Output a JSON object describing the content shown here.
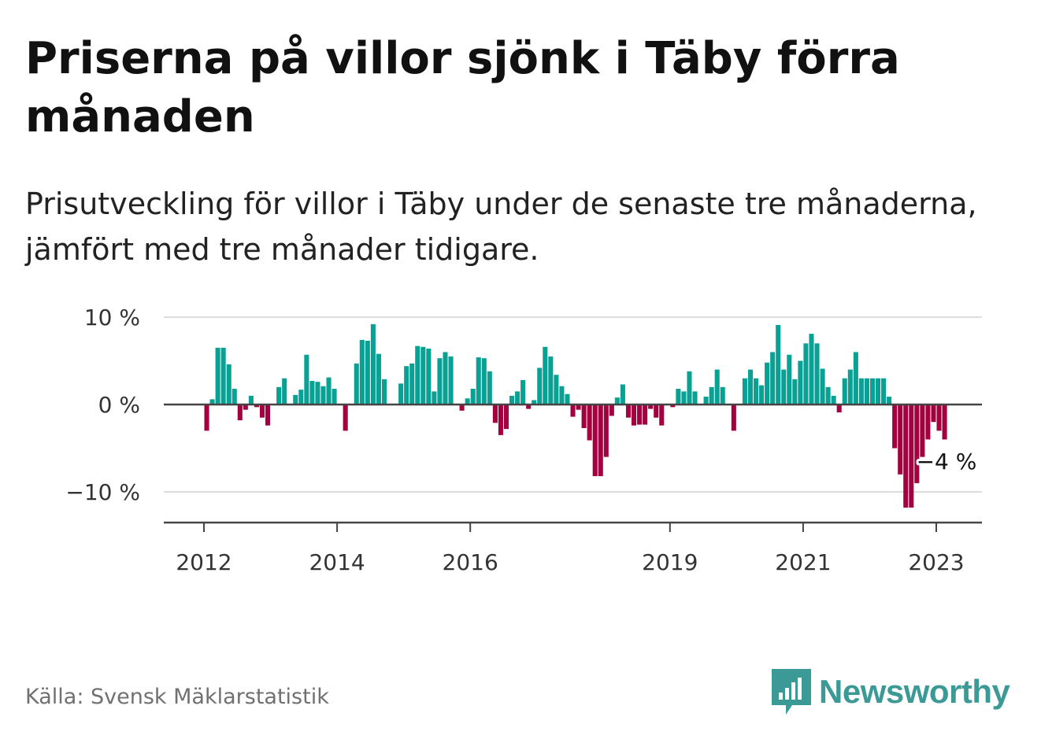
{
  "title": "Priserna på villor sjönk i Täby förra månaden",
  "subtitle": "Prisutveckling för villor i Täby under de senaste tre månaderna, jämfört med tre månader tidigare.",
  "source": "Källa: Svensk Mäklarstatistik",
  "brand": {
    "name": "Newsworthy",
    "color": "#3b9a96",
    "icon": "bar-chart-badge-icon"
  },
  "colors": {
    "positive": "#0aa195",
    "negative": "#a3003f",
    "grid": "#dddddd",
    "axis": "#444444"
  },
  "chart_data": {
    "type": "bar",
    "ylabel": "",
    "xlabel": "",
    "ylim": [
      -14,
      11
    ],
    "y_ticks": [
      {
        "value": 10,
        "label": "10 %"
      },
      {
        "value": 0,
        "label": "0 %"
      },
      {
        "value": -10,
        "label": "−10 %"
      }
    ],
    "x_ticks": [
      {
        "value": 2012.0,
        "label": "2012"
      },
      {
        "value": 2014.0,
        "label": "2014"
      },
      {
        "value": 2016.0,
        "label": "2016"
      },
      {
        "value": 2019.0,
        "label": "2019"
      },
      {
        "value": 2021.0,
        "label": "2021"
      },
      {
        "value": 2023.0,
        "label": "2023"
      }
    ],
    "grid": true,
    "start": "2012-01",
    "frequency": "monthly",
    "values": [
      -3,
      0.6,
      6.5,
      6.5,
      4.6,
      1.8,
      -1.8,
      -0.6,
      1,
      -0.3,
      -1.5,
      -2.4,
      0,
      2,
      3,
      0,
      1.1,
      1.7,
      5.7,
      2.7,
      2.6,
      2.1,
      3.1,
      1.8,
      0,
      -3,
      0,
      4.7,
      7.4,
      7.3,
      9.2,
      5.8,
      2.9,
      0,
      0,
      2.4,
      4.4,
      4.7,
      6.7,
      6.6,
      6.4,
      1.5,
      5.3,
      6,
      5.5,
      0,
      -0.7,
      0.7,
      1.8,
      5.4,
      5.3,
      3.8,
      -2.1,
      -3.5,
      -2.8,
      1,
      1.5,
      2.8,
      -0.5,
      0.5,
      4.2,
      6.6,
      5.5,
      3.4,
      2.1,
      1.2,
      -1.4,
      -0.6,
      -2.7,
      -4.1,
      -8.2,
      -8.2,
      -6,
      -1.3,
      0.8,
      2.3,
      -1.5,
      -2.4,
      -2.3,
      -2.3,
      -0.5,
      -1.5,
      -2.4,
      0,
      -0.3,
      1.8,
      1.5,
      3.8,
      1.5,
      0,
      0.9,
      2,
      4,
      2,
      0,
      -3,
      0,
      3,
      4,
      3,
      2.2,
      4.8,
      6,
      9.1,
      4,
      5.7,
      2.9,
      5,
      7,
      8.1,
      7,
      4.1,
      2,
      1,
      -0.9,
      3,
      4,
      6,
      3,
      3,
      3,
      3,
      3,
      0.9,
      -5,
      -8,
      -11.8,
      -11.8,
      -9,
      -6,
      -4,
      -2,
      -3,
      -4
    ],
    "annotations": [
      {
        "label": "−4 %",
        "value": -4,
        "date": "2023-02"
      }
    ]
  }
}
